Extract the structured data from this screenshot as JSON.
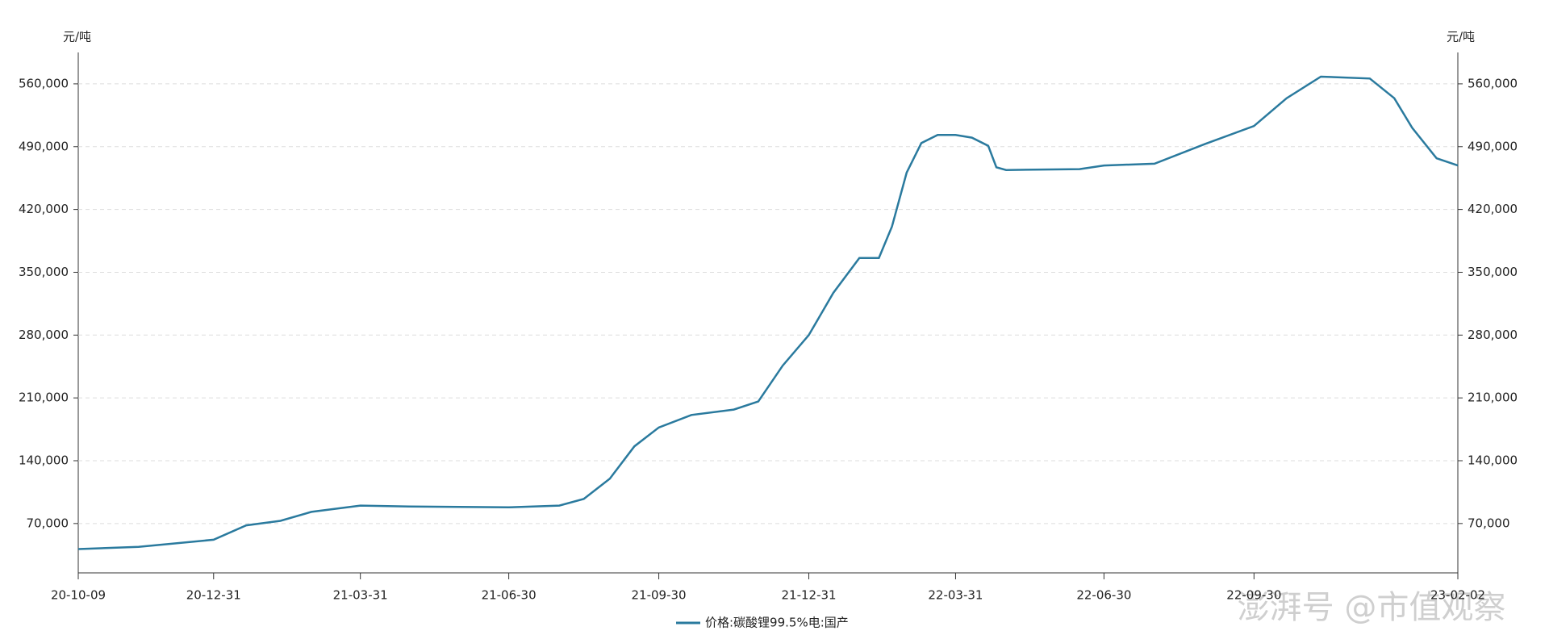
{
  "chart_data": {
    "type": "line",
    "y_label": "元/吨",
    "x": [
      "20-10-09",
      "20-11-15",
      "20-12-31",
      "21-01-20",
      "21-02-10",
      "21-03-01",
      "21-03-31",
      "21-04-30",
      "21-06-30",
      "21-07-31",
      "21-08-15",
      "21-08-31",
      "21-09-15",
      "21-09-30",
      "21-10-20",
      "21-11-15",
      "21-11-30",
      "21-12-15",
      "21-12-31",
      "22-01-15",
      "22-01-31",
      "22-02-12",
      "22-02-20",
      "22-03-01",
      "22-03-10",
      "22-03-20",
      "22-03-31",
      "22-04-10",
      "22-04-20",
      "22-04-25",
      "22-05-01",
      "22-06-15",
      "22-06-30",
      "22-07-31",
      "22-08-31",
      "22-09-30",
      "22-10-20",
      "22-11-10",
      "22-12-10",
      "22-12-25",
      "23-01-05",
      "23-01-20",
      "23-02-02"
    ],
    "series": [
      {
        "name": "价格:碳酸锂99.5%电:国产",
        "color": "#2a7a9e",
        "values": [
          41500,
          44000,
          52000,
          68000,
          73000,
          83000,
          90000,
          89000,
          88000,
          90000,
          97500,
          120000,
          156000,
          177000,
          191000,
          197000,
          206000,
          246000,
          280000,
          327000,
          366000,
          366000,
          401000,
          461000,
          494000,
          503000,
          503000,
          500000,
          491000,
          467000,
          464000,
          465000,
          469000,
          471000,
          493000,
          513000,
          544000,
          568000,
          566000,
          544000,
          511000,
          477000,
          469000
        ]
      }
    ],
    "xlim": [
      "20-10-09",
      "23-02-02"
    ],
    "xticks": [
      "20-10-09",
      "20-12-31",
      "21-03-31",
      "21-06-30",
      "21-09-30",
      "21-12-31",
      "22-03-31",
      "22-06-30",
      "22-09-30",
      "23-02-02"
    ],
    "ylim": [
      15000,
      595000
    ],
    "yticks": [
      {
        "value": 70000,
        "label": "70,000"
      },
      {
        "value": 140000,
        "label": "140,000"
      },
      {
        "value": 210000,
        "label": "210,000"
      },
      {
        "value": 280000,
        "label": "280,000"
      },
      {
        "value": 350000,
        "label": "350,000"
      },
      {
        "value": 420000,
        "label": "420,000"
      },
      {
        "value": 490000,
        "label": "490,000"
      },
      {
        "value": 560000,
        "label": "560,000"
      }
    ],
    "grid": true,
    "watermark": "澎湃号 @市值观察"
  }
}
